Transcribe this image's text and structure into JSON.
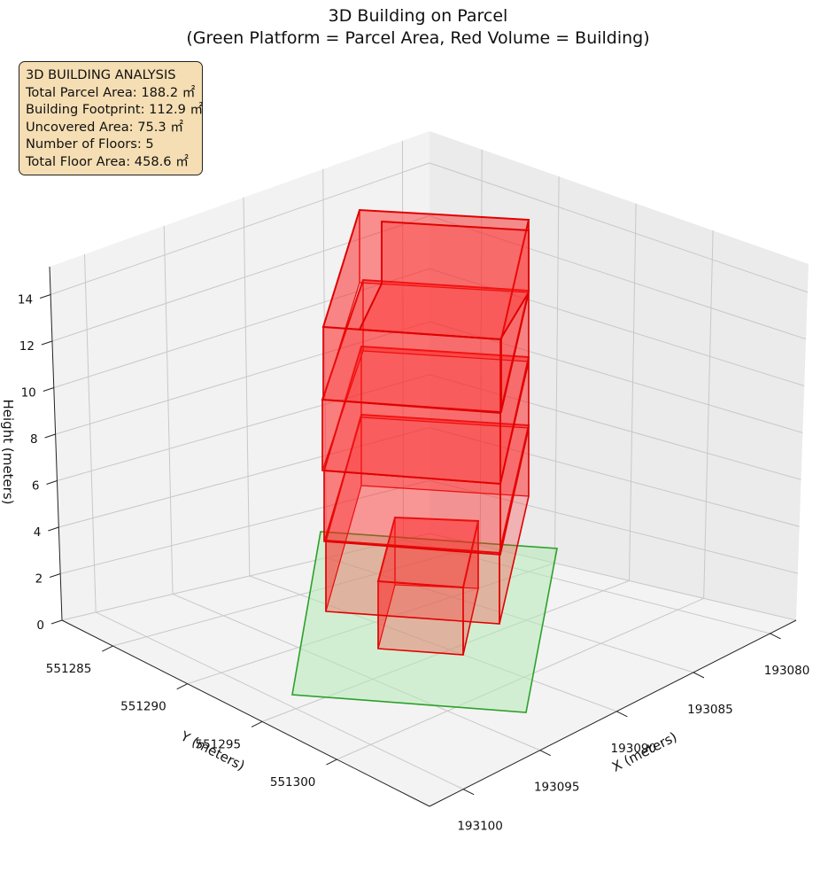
{
  "chart_data": {
    "type": "3d-box",
    "title": "3D Building on Parcel",
    "subtitle": "(Green Platform = Parcel Area, Red Volume = Building)",
    "xlabel": "X (meters)",
    "ylabel": "Y (meters)",
    "zlabel": "Height (meters)",
    "x_ticks": [
      "193080",
      "193085",
      "193090",
      "193095",
      "193100"
    ],
    "y_ticks": [
      "551285",
      "551290",
      "551295",
      "551300"
    ],
    "z_ticks": [
      "0",
      "2",
      "4",
      "6",
      "8",
      "10",
      "12",
      "14"
    ],
    "grid": true,
    "colors": {
      "parcel_fill": "#b7eab7",
      "parcel_edge": "#2ca02c",
      "building_fill": "#ff2020",
      "building_edge": "#e00000",
      "infobox_bg": "#f5deb3"
    }
  },
  "info_box": {
    "heading": "3D BUILDING ANALYSIS",
    "parcel_area": "Total Parcel Area: 188.2 ㎡",
    "footprint": "Building Footprint: 112.9 ㎡",
    "uncovered": "Uncovered Area: 75.3 ㎡",
    "floors": "Number of Floors: 5",
    "floor_area": "Total Floor Area: 458.6 ㎡"
  }
}
